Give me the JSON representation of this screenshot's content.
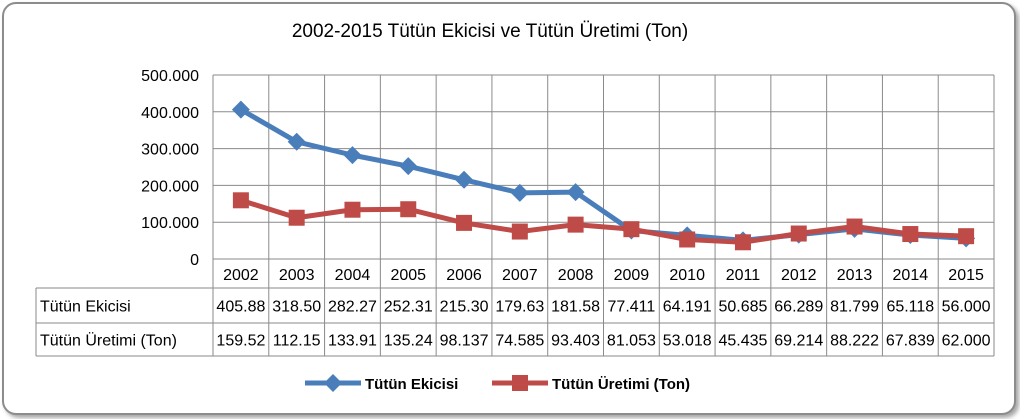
{
  "chart_data": {
    "type": "line",
    "title": "2002-2015 Tütün Ekicisi ve Tütün Üretimi (Ton)",
    "categories": [
      "2002",
      "2003",
      "2004",
      "2005",
      "2006",
      "2007",
      "2008",
      "2009",
      "2010",
      "2011",
      "2012",
      "2013",
      "2014",
      "2015"
    ],
    "ylim": [
      0,
      500000
    ],
    "yticks": [
      {
        "value": 0,
        "label": "0"
      },
      {
        "value": 100000,
        "label": "100.000"
      },
      {
        "value": 200000,
        "label": "200.000"
      },
      {
        "value": 300000,
        "label": "300.000"
      },
      {
        "value": 400000,
        "label": "400.000"
      },
      {
        "value": 500000,
        "label": "500.000"
      }
    ],
    "grid": true,
    "legend_position": "bottom",
    "series": [
      {
        "name": "Tütün Ekicisi",
        "color": "#4a7ebb",
        "marker": "diamond",
        "values": [
          405882,
          318500,
          282270,
          252310,
          215300,
          179630,
          181580,
          77411,
          64191,
          50685,
          66289,
          81799,
          65118,
          56000
        ],
        "table_labels": [
          "405.88",
          "318.50",
          "282.27",
          "252.31",
          "215.30",
          "179.63",
          "181.58",
          "77.411",
          "64.191",
          "50.685",
          "66.289",
          "81.799",
          "65.118",
          "56.000"
        ]
      },
      {
        "name": "Tütün Üretimi (Ton)",
        "color": "#be4b48",
        "marker": "square",
        "values": [
          159520,
          112150,
          133910,
          135240,
          98137,
          74585,
          93403,
          81053,
          53018,
          45435,
          69214,
          88222,
          67839,
          62000
        ],
        "table_labels": [
          "159.52",
          "112.15",
          "133.91",
          "135.24",
          "98.137",
          "74.585",
          "93.403",
          "81.053",
          "53.018",
          "45.435",
          "69.214",
          "88.222",
          "67.839",
          "62.000"
        ]
      }
    ]
  }
}
